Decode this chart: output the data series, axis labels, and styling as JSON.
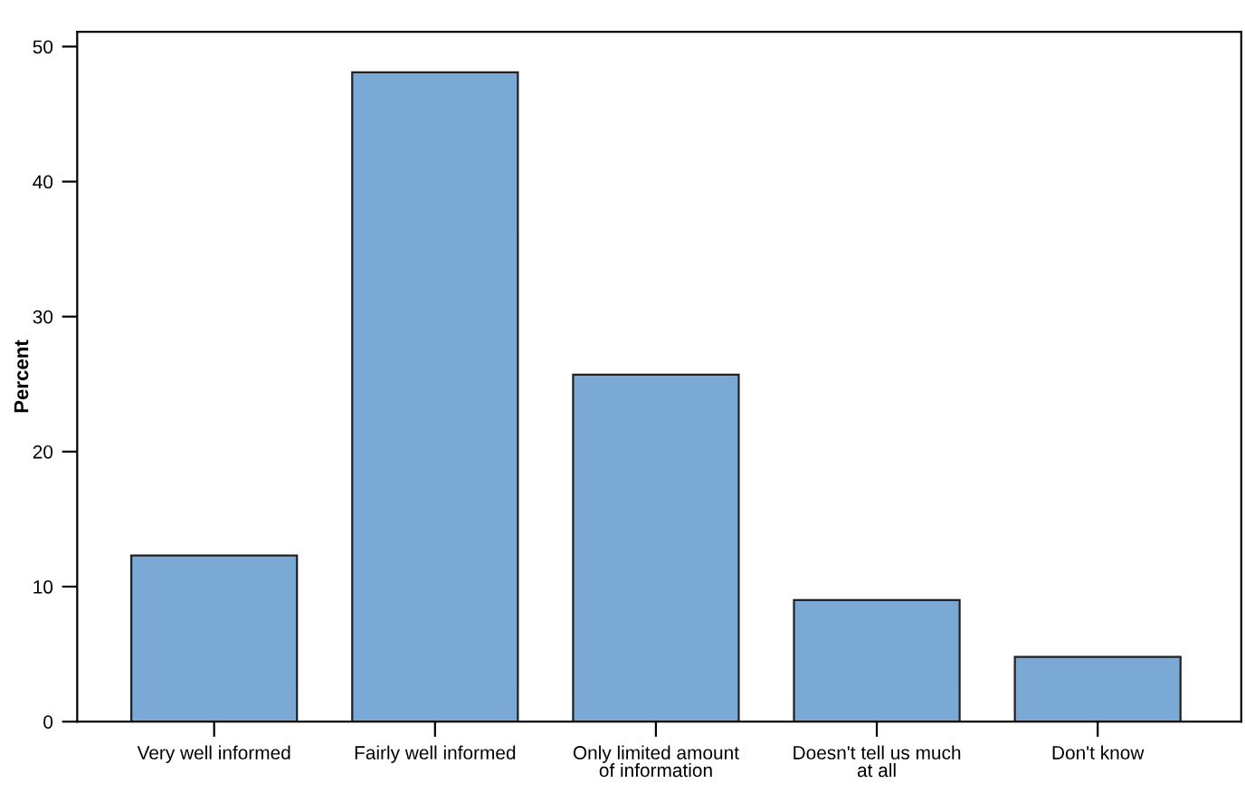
{
  "chart_data": {
    "type": "bar",
    "ylabel": "Percent",
    "categories": [
      "Very well informed",
      "Fairly well informed",
      "Only limited amount\nof information",
      "Doesn't tell us much\nat all",
      "Don't know"
    ],
    "values": [
      12.3,
      48.1,
      25.7,
      9.0,
      4.8
    ],
    "color": "#7ba9d6",
    "ylim": [
      0,
      51.1
    ],
    "yticks": [
      0,
      10,
      20,
      30,
      40,
      50
    ],
    "grid": false,
    "legend": false
  }
}
